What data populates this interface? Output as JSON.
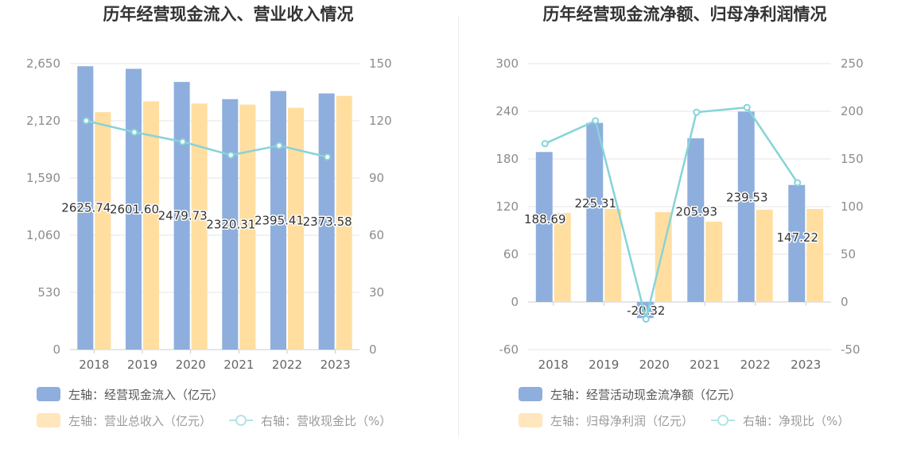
{
  "colors": {
    "bar_primary": "#8eaedd",
    "bar_secondary": "#ffdea0",
    "line": "#86d4d9",
    "grid": "#e6e6e6",
    "axis": "#cccccc"
  },
  "chart_data": [
    {
      "type": "bar",
      "title": "历年经营现金流入、营业收入情况",
      "categories": [
        "2018",
        "2019",
        "2020",
        "2021",
        "2022",
        "2023"
      ],
      "y_left": {
        "ticks": [
          "0",
          "530",
          "1,060",
          "1,590",
          "2,120",
          "2,650"
        ],
        "lim": [
          0,
          2650
        ]
      },
      "y_right": {
        "ticks": [
          "0",
          "30",
          "60",
          "90",
          "120",
          "150"
        ],
        "lim": [
          0,
          150
        ]
      },
      "series": [
        {
          "name": "左轴：经营现金流入（亿元）",
          "type": "bar",
          "axis": "left",
          "values": [
            2625.74,
            2601.6,
            2479.73,
            2320.31,
            2395.41,
            2373.58
          ],
          "labels": [
            "2625.74",
            "2601.60",
            "2479.73",
            "2320.31",
            "2395.41",
            "2373.58"
          ]
        },
        {
          "name": "左轴：营业总收入（亿元）",
          "type": "bar",
          "axis": "left",
          "values": [
            2200,
            2300,
            2280,
            2270,
            2240,
            2350
          ]
        },
        {
          "name": "右轴：营收现金比（%）",
          "type": "line",
          "axis": "right",
          "values": [
            120,
            114,
            109,
            102,
            107,
            101
          ]
        }
      ],
      "legend_placement": "bottom-left",
      "grid": true
    },
    {
      "type": "bar",
      "title": "历年经营现金流净额、归母净利润情况",
      "categories": [
        "2018",
        "2019",
        "2020",
        "2021",
        "2022",
        "2023"
      ],
      "y_left": {
        "ticks": [
          "-60",
          "0",
          "60",
          "120",
          "180",
          "240",
          "300"
        ],
        "lim": [
          -60,
          300
        ]
      },
      "y_right": {
        "ticks": [
          "-50",
          "0",
          "50",
          "100",
          "150",
          "200",
          "250"
        ],
        "lim": [
          -50,
          250
        ]
      },
      "series": [
        {
          "name": "左轴：经营活动现金流净额（亿元）",
          "type": "bar",
          "axis": "left",
          "values": [
            188.69,
            225.31,
            -20.32,
            205.93,
            239.53,
            147.22
          ],
          "labels": [
            "188.69",
            "225.31",
            "-20.32",
            "205.93",
            "239.53",
            "147.22"
          ]
        },
        {
          "name": "左轴：归母净利润（亿元）",
          "type": "bar",
          "axis": "left",
          "values": [
            112,
            117,
            113,
            101,
            116,
            117
          ]
        },
        {
          "name": "右轴：净现比（%）",
          "type": "line",
          "axis": "right",
          "values": [
            166,
            190,
            -18,
            199,
            204,
            125
          ]
        }
      ],
      "legend_placement": "bottom-left",
      "grid": true
    }
  ]
}
